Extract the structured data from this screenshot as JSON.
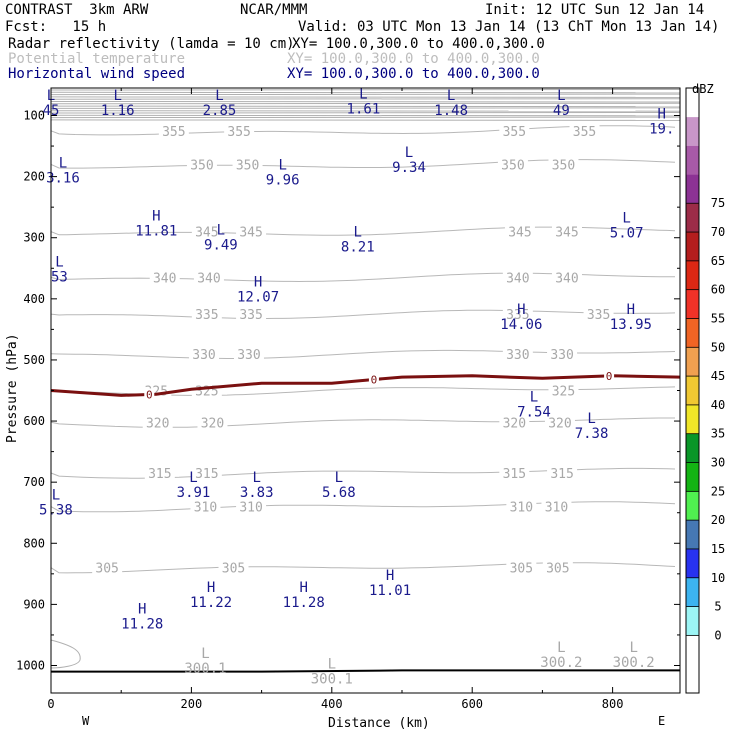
{
  "header": {
    "model": "CONTRAST  3km ARW",
    "org": "NCAR/MMM",
    "init": "Init: 12 UTC Sun 12 Jan 14",
    "fcst": "Fcst:   15 h",
    "valid": "Valid: 03 UTC Mon 13 Jan 14 (13 ChT Mon 13 Jan 14)",
    "fields": [
      {
        "name": "Radar reflectivity (lamda = 10 cm)",
        "xy": "XY= 100.0,300.0 to 400.0,300.0",
        "color": "#000000"
      },
      {
        "name": "Potential temperature",
        "xy": "XY= 100.0,300.0 to 400.0,300.0",
        "color": "#bdbdbd"
      },
      {
        "name": "Horizontal wind speed",
        "xy": "XY= 100.0,300.0 to 400.0,300.0",
        "color": "#000080"
      }
    ]
  },
  "chart_data": {
    "type": "cross-section",
    "xlabel": "Distance (km)",
    "ylabel": "Pressure (hPa)",
    "xlim": [
      0,
      896
    ],
    "ylim": [
      1045,
      55
    ],
    "xticks": [
      0,
      200,
      400,
      600,
      800
    ],
    "yticks": [
      100,
      200,
      300,
      400,
      500,
      600,
      700,
      800,
      900,
      1000
    ],
    "x_ends": {
      "left": "W",
      "right": "E"
    },
    "colorbar": {
      "unit": "dBZ",
      "levels": [
        0,
        5,
        10,
        15,
        20,
        25,
        30,
        35,
        40,
        45,
        50,
        55,
        60,
        65,
        70,
        75
      ],
      "colors": [
        "#ffffff",
        "#ffffff",
        "#9cf5f5",
        "#3cb4f0",
        "#2832f0",
        "#4678b4",
        "#50f050",
        "#14b414",
        "#0a9628",
        "#f0e628",
        "#f0c832",
        "#f0a050",
        "#f06424",
        "#f03228",
        "#dc2814",
        "#b41e1e",
        "#9c2c48",
        "#8c3294",
        "#a85aa8",
        "#c896c8",
        "#ffffff"
      ]
    },
    "theta_levels": [
      {
        "value": 355,
        "p": 125,
        "labels": [
          {
            "x": 175,
            "text": "355"
          },
          {
            "x": 268,
            "text": "355"
          },
          {
            "x": 660,
            "text": "355"
          },
          {
            "x": 760,
            "text": "355"
          }
        ]
      },
      {
        "value": 350,
        "p": 180,
        "labels": [
          {
            "x": 215,
            "text": "350"
          },
          {
            "x": 280,
            "text": "350"
          },
          {
            "x": 658,
            "text": "350"
          },
          {
            "x": 730,
            "text": "350"
          }
        ]
      },
      {
        "value": 345,
        "p": 290,
        "labels": [
          {
            "x": 222,
            "text": "345"
          },
          {
            "x": 285,
            "text": "345"
          },
          {
            "x": 668,
            "text": "345"
          },
          {
            "x": 735,
            "text": "345"
          }
        ]
      },
      {
        "value": 340,
        "p": 365,
        "labels": [
          {
            "x": 162,
            "text": "340"
          },
          {
            "x": 225,
            "text": "340"
          },
          {
            "x": 665,
            "text": "340"
          },
          {
            "x": 735,
            "text": "340"
          }
        ]
      },
      {
        "value": 335,
        "p": 425,
        "labels": [
          {
            "x": 222,
            "text": "335"
          },
          {
            "x": 285,
            "text": "335"
          },
          {
            "x": 665,
            "text": "335"
          },
          {
            "x": 780,
            "text": "335"
          }
        ]
      },
      {
        "value": 330,
        "p": 490,
        "labels": [
          {
            "x": 218,
            "text": "330"
          },
          {
            "x": 282,
            "text": "330"
          },
          {
            "x": 665,
            "text": "330"
          },
          {
            "x": 728,
            "text": "330"
          }
        ]
      },
      {
        "value": 325,
        "p": 550,
        "labels": [
          {
            "x": 150,
            "text": "325"
          },
          {
            "x": 222,
            "text": "325"
          },
          {
            "x": 730,
            "text": "325"
          }
        ]
      },
      {
        "value": 320,
        "p": 602,
        "labels": [
          {
            "x": 152,
            "text": "320"
          },
          {
            "x": 230,
            "text": "320"
          },
          {
            "x": 660,
            "text": "320"
          },
          {
            "x": 725,
            "text": "320"
          }
        ]
      },
      {
        "value": 315,
        "p": 685,
        "labels": [
          {
            "x": 155,
            "text": "315"
          },
          {
            "x": 222,
            "text": "315"
          },
          {
            "x": 660,
            "text": "315"
          },
          {
            "x": 728,
            "text": "315"
          }
        ]
      },
      {
        "value": 310,
        "p": 740,
        "labels": [
          {
            "x": 220,
            "text": "310"
          },
          {
            "x": 285,
            "text": "310"
          },
          {
            "x": 670,
            "text": "310"
          },
          {
            "x": 720,
            "text": "310"
          }
        ]
      },
      {
        "value": 305,
        "p": 840,
        "labels": [
          {
            "x": 80,
            "text": "305"
          },
          {
            "x": 260,
            "text": "305"
          },
          {
            "x": 670,
            "text": "305"
          },
          {
            "x": 722,
            "text": "305"
          }
        ]
      }
    ],
    "zero_contour": {
      "label": "0",
      "points": [
        [
          0,
          550
        ],
        [
          100,
          558
        ],
        [
          150,
          556
        ],
        [
          200,
          548
        ],
        [
          300,
          538
        ],
        [
          400,
          538
        ],
        [
          450,
          533
        ],
        [
          500,
          528
        ],
        [
          600,
          526
        ],
        [
          700,
          530
        ],
        [
          800,
          526
        ],
        [
          896,
          528
        ]
      ],
      "label_x": [
        140,
        460,
        795
      ]
    },
    "extrema_H": [
      {
        "x": 870,
        "p": 105,
        "value": "19."
      },
      {
        "x": 150,
        "p": 272,
        "value": "11.81"
      },
      {
        "x": 295,
        "p": 380,
        "value": "12.07"
      },
      {
        "x": 670,
        "p": 425,
        "value": "14.06"
      },
      {
        "x": 826,
        "p": 425,
        "value": "13.95"
      },
      {
        "x": 483,
        "p": 860,
        "value": "11.01"
      },
      {
        "x": 228,
        "p": 880,
        "value": "11.22"
      },
      {
        "x": 360,
        "p": 880,
        "value": "11.28"
      },
      {
        "x": 130,
        "p": 915,
        "value": "11.28"
      }
    ],
    "extrema_L": [
      {
        "x": 0,
        "p": 75,
        "value": "45"
      },
      {
        "x": 95,
        "p": 75,
        "value": "1.16"
      },
      {
        "x": 240,
        "p": 75,
        "value": "2.85"
      },
      {
        "x": 445,
        "p": 72,
        "value": "1.61"
      },
      {
        "x": 570,
        "p": 75,
        "value": "1.48"
      },
      {
        "x": 727,
        "p": 75,
        "value": "49"
      },
      {
        "x": 17,
        "p": 185,
        "value": "3.16"
      },
      {
        "x": 330,
        "p": 188,
        "value": "9.96"
      },
      {
        "x": 510,
        "p": 168,
        "value": "9.34"
      },
      {
        "x": 242,
        "p": 295,
        "value": "9.49"
      },
      {
        "x": 437,
        "p": 298,
        "value": "8.21"
      },
      {
        "x": 820,
        "p": 275,
        "value": "5.07"
      },
      {
        "x": 12,
        "p": 347,
        "value": "53"
      },
      {
        "x": 688,
        "p": 568,
        "value": "7.54"
      },
      {
        "x": 770,
        "p": 603,
        "value": "7.38"
      },
      {
        "x": 203,
        "p": 700,
        "value": "3.91"
      },
      {
        "x": 293,
        "p": 700,
        "value": "3.83"
      },
      {
        "x": 410,
        "p": 700,
        "value": "5.68"
      },
      {
        "x": 7,
        "p": 728,
        "value": "5.38"
      }
    ],
    "extrema_L_grey": [
      {
        "x": 220,
        "p": 988,
        "value": "300.1"
      },
      {
        "x": 400,
        "p": 1005,
        "value": "300.1"
      },
      {
        "x": 727,
        "p": 978,
        "value": "300.2"
      },
      {
        "x": 830,
        "p": 978,
        "value": "300.2"
      }
    ],
    "surface": [
      [
        0,
        1010
      ],
      [
        300,
        1010
      ],
      [
        500,
        1008
      ],
      [
        896,
        1008
      ]
    ]
  }
}
